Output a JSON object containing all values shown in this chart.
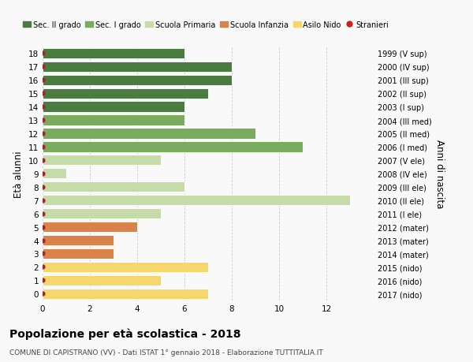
{
  "ages": [
    0,
    1,
    2,
    3,
    4,
    5,
    6,
    7,
    8,
    9,
    10,
    11,
    12,
    13,
    14,
    15,
    16,
    17,
    18
  ],
  "right_labels": [
    "2017 (nido)",
    "2016 (nido)",
    "2015 (nido)",
    "2014 (mater)",
    "2013 (mater)",
    "2012 (mater)",
    "2011 (I ele)",
    "2010 (II ele)",
    "2009 (III ele)",
    "2008 (IV ele)",
    "2007 (V ele)",
    "2006 (I med)",
    "2005 (II med)",
    "2004 (III med)",
    "2003 (I sup)",
    "2002 (II sup)",
    "2001 (III sup)",
    "2000 (IV sup)",
    "1999 (V sup)"
  ],
  "bar_values": [
    7,
    5,
    7,
    3,
    3,
    4,
    5,
    13,
    6,
    1,
    5,
    11,
    9,
    6,
    6,
    7,
    8,
    8,
    6
  ],
  "bar_colors": [
    "#f5d76e",
    "#f5d76e",
    "#f5d76e",
    "#d9834a",
    "#d9834a",
    "#d9834a",
    "#c5dba8",
    "#c5dba8",
    "#c5dba8",
    "#c5dba8",
    "#c5dba8",
    "#7aab5e",
    "#7aab5e",
    "#7aab5e",
    "#4a7c3f",
    "#4a7c3f",
    "#4a7c3f",
    "#4a7c3f",
    "#4a7c3f"
  ],
  "dot_color": "#9b2a2a",
  "grid_color": "#cccccc",
  "bg_color": "#f9f9f9",
  "ylabel": "Età alunni",
  "right_ylabel": "Anni di nascita",
  "xlim": [
    0,
    14
  ],
  "ylim": [
    -0.5,
    18.5
  ],
  "xticks": [
    0,
    2,
    4,
    6,
    8,
    10,
    12
  ],
  "title": "Popolazione per età scolastica - 2018",
  "subtitle": "COMUNE DI CAPISTRANO (VV) - Dati ISTAT 1° gennaio 2018 - Elaborazione TUTTITALIA.IT",
  "legend_items": [
    {
      "label": "Sec. II grado",
      "color": "#4a7c3f",
      "type": "patch"
    },
    {
      "label": "Sec. I grado",
      "color": "#7aab5e",
      "type": "patch"
    },
    {
      "label": "Scuola Primaria",
      "color": "#c5dba8",
      "type": "patch"
    },
    {
      "label": "Scuola Infanzia",
      "color": "#d9834a",
      "type": "patch"
    },
    {
      "label": "Asilo Nido",
      "color": "#f5d76e",
      "type": "patch"
    },
    {
      "label": "Stranieri",
      "color": "#cc2222",
      "type": "dot"
    }
  ],
  "bar_height": 0.78
}
